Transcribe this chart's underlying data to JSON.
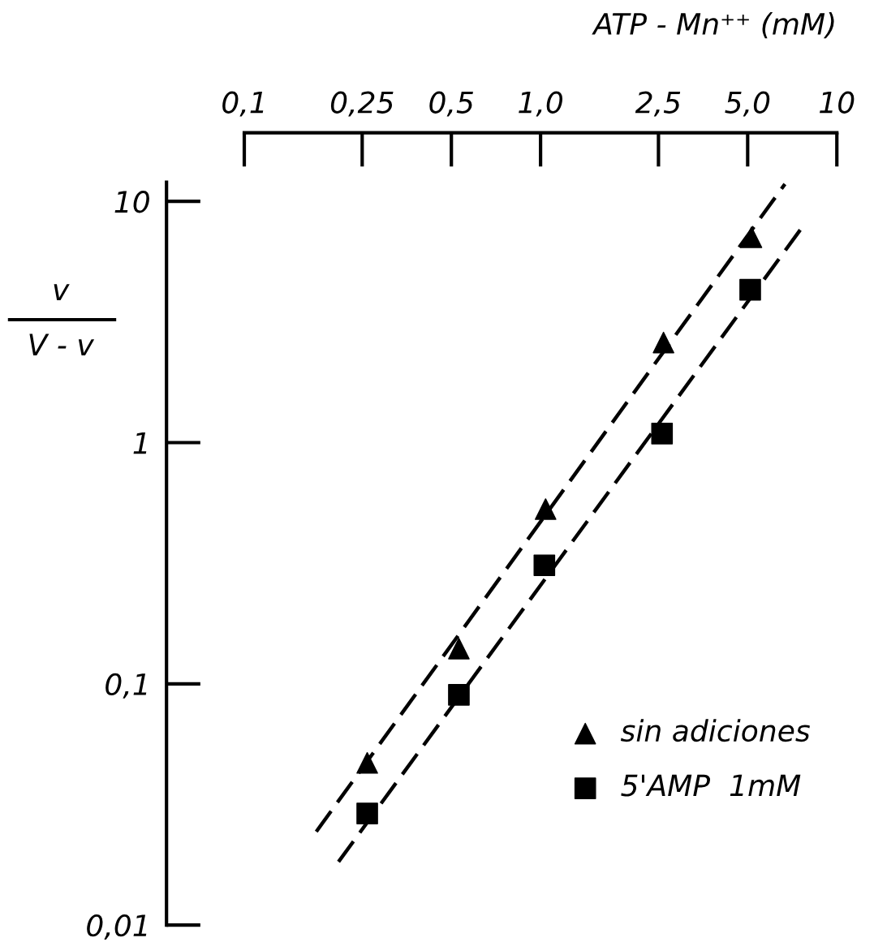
{
  "chart_data": {
    "type": "scatter",
    "xlabel": "ATP - Mn⁺⁺ (mM)",
    "ylabel": "v\nV - v",
    "log": "xy",
    "xlim": [
      0.1,
      10
    ],
    "ylim": [
      0.01,
      12
    ],
    "xticks": [
      {
        "value": 0.1,
        "label": "0,1"
      },
      {
        "value": 0.25,
        "label": "0,25"
      },
      {
        "value": 0.5,
        "label": "0,5"
      },
      {
        "value": 1.0,
        "label": "1,0"
      },
      {
        "value": 2.5,
        "label": "2,5"
      },
      {
        "value": 5.0,
        "label": "5,0"
      },
      10
    ],
    "yticks": [
      {
        "value": 0.01,
        "label": "0,01"
      },
      {
        "value": 0.1,
        "label": "0,1"
      },
      1,
      10
    ],
    "grid": false,
    "legend": "bottom right",
    "series": [
      {
        "name": "sin adiciones",
        "marker": "triangle",
        "color": "#000000",
        "x": [
          0.26,
          0.53,
          1.04,
          2.6,
          5.15
        ],
        "values": [
          0.047,
          0.14,
          0.53,
          2.6,
          7.1
        ]
      },
      {
        "name": "5'AMP  1mM",
        "marker": "square",
        "color": "#000000",
        "x": [
          0.26,
          0.53,
          1.03,
          2.57,
          5.1
        ],
        "values": [
          0.029,
          0.09,
          0.31,
          1.09,
          4.3
        ]
      },
      {
        "type": "line",
        "line_style": "dashed",
        "color": "#000000",
        "x": [
          0.175,
          6.68
        ],
        "values": [
          0.0244,
          11.8
        ]
      },
      {
        "type": "line",
        "line_style": "dashed",
        "color": "#000000",
        "x": [
          0.208,
          7.57
        ],
        "values": [
          0.0183,
          7.7
        ]
      }
    ]
  }
}
